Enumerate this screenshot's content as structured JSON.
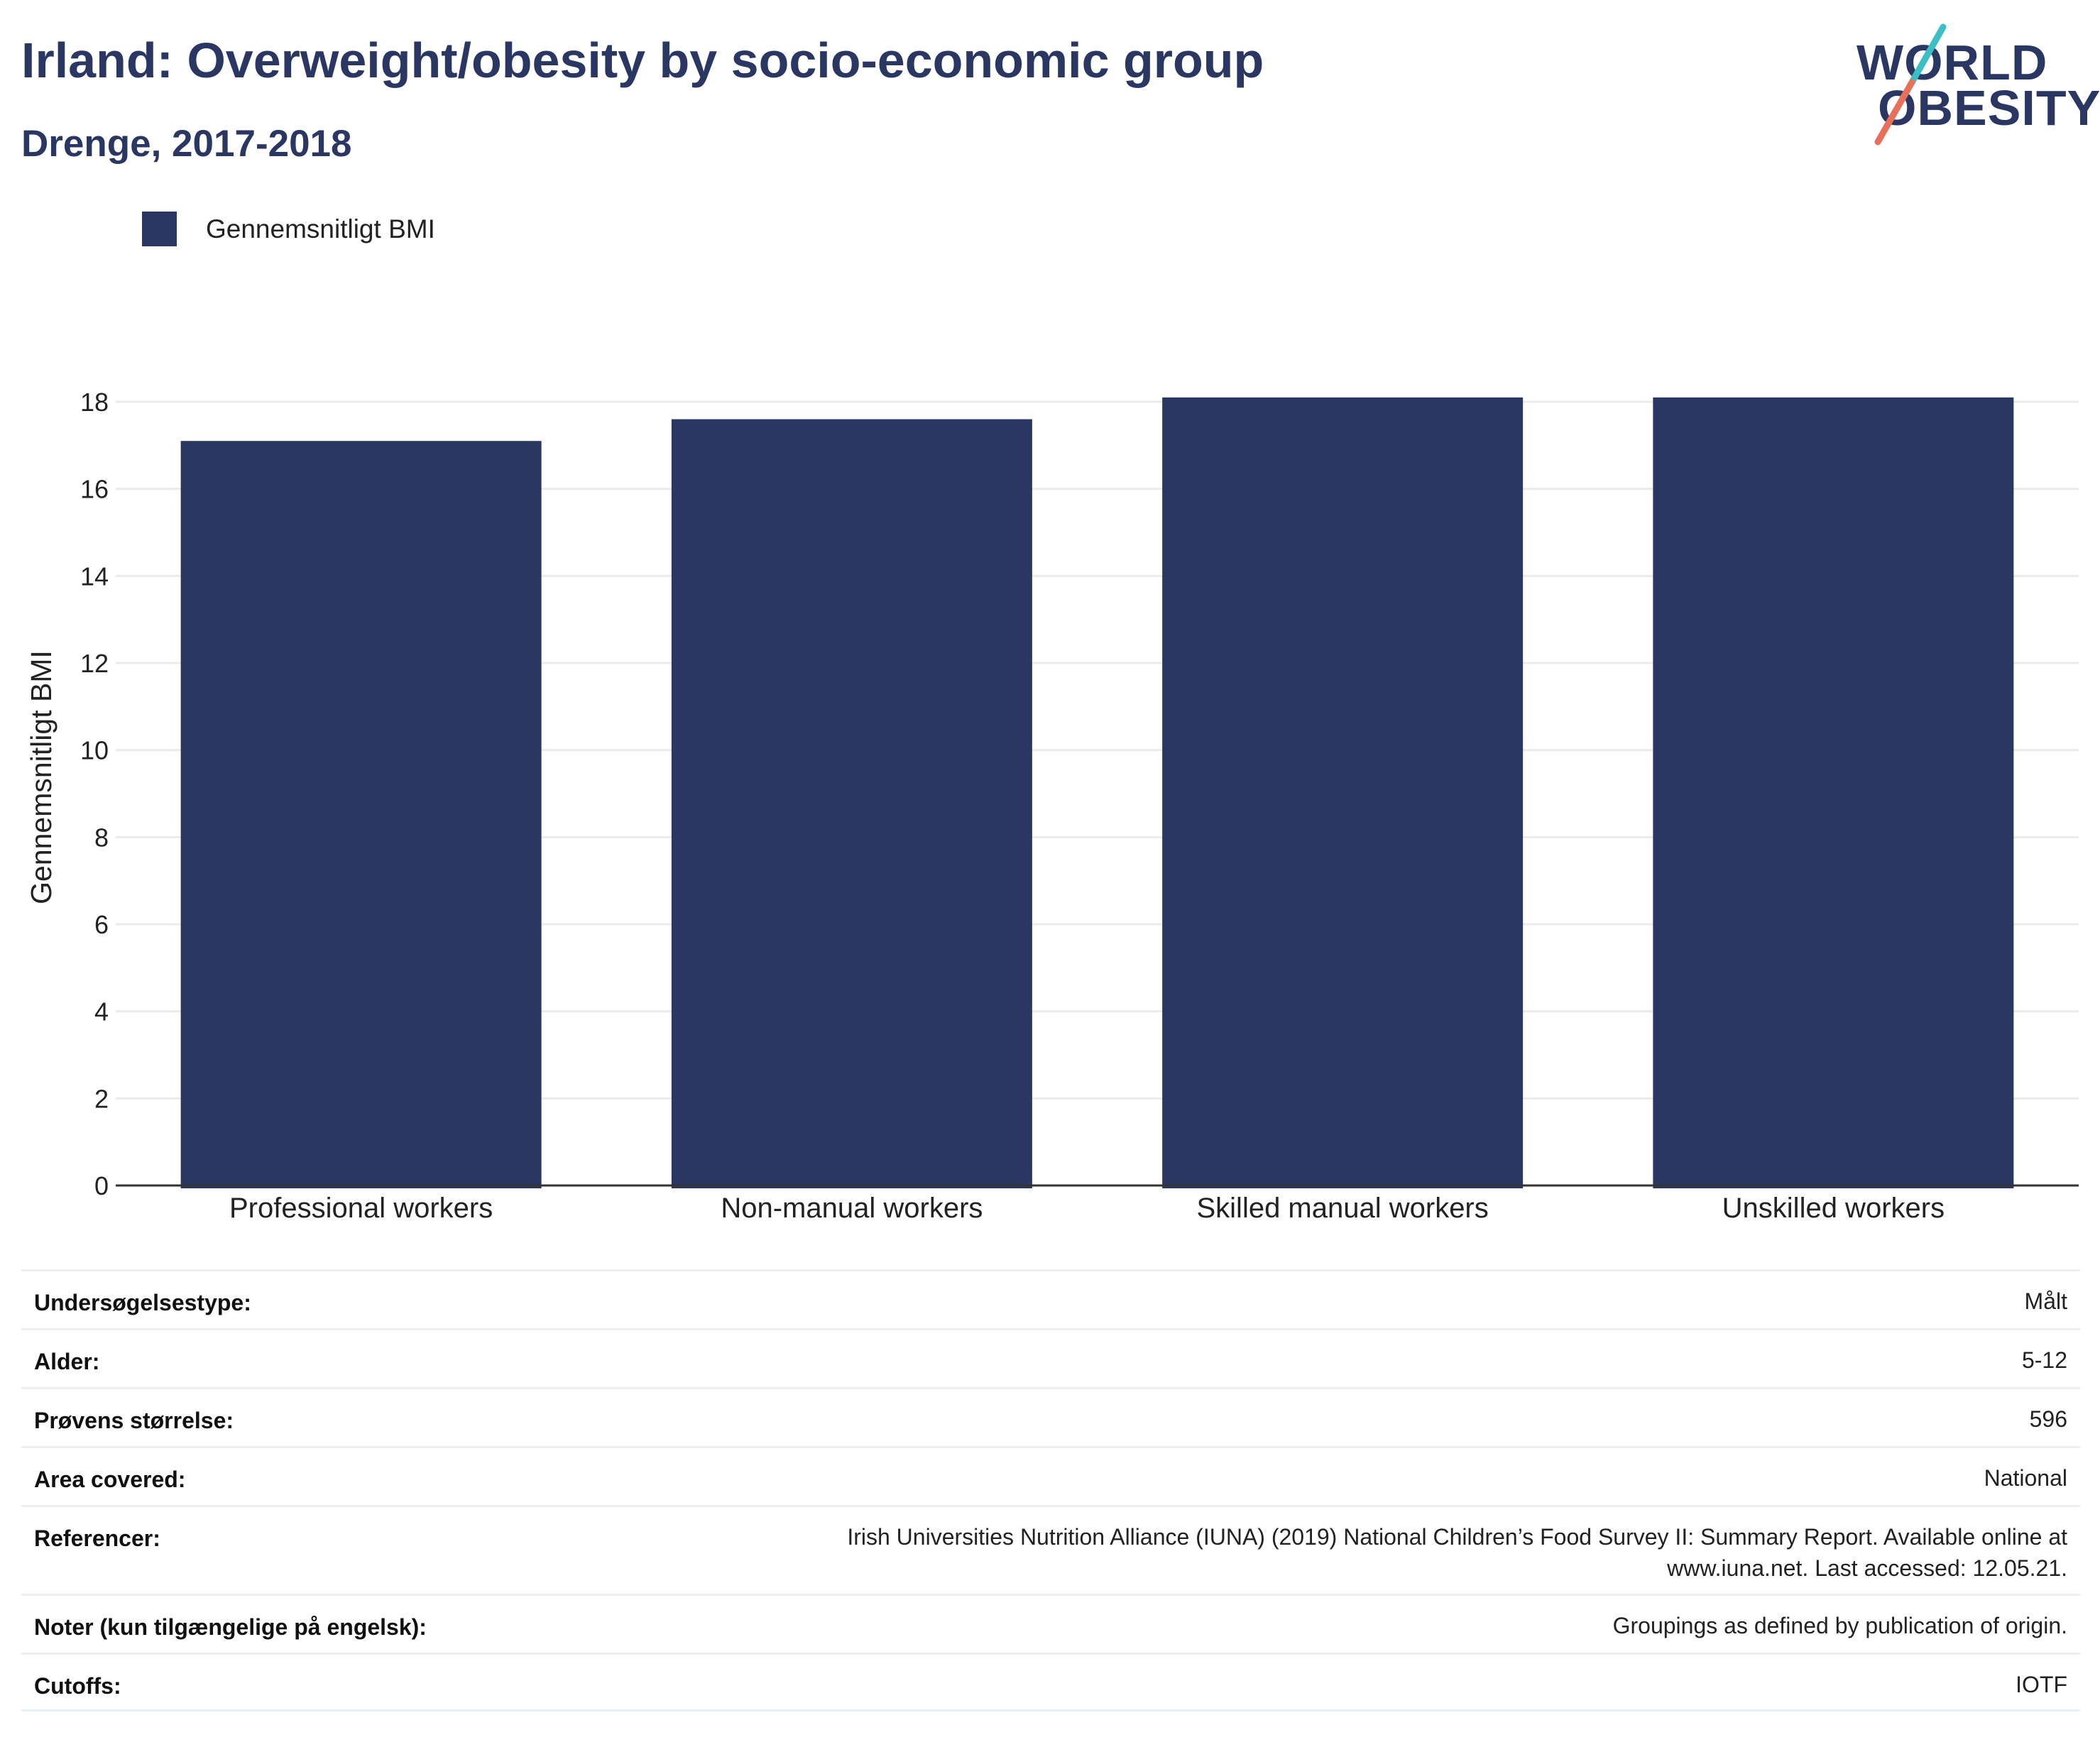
{
  "header": {
    "title": "Irland: Overweight/obesity by socio-economic group",
    "subtitle": "Drenge, 2017-2018"
  },
  "logo": {
    "line1": "WORLD",
    "line2": "OBESITY",
    "colors": {
      "text": "#2b3763",
      "slash_top": "#3bbfc4",
      "slash_bottom": "#e8705a"
    }
  },
  "legend": {
    "label": "Gennemsnitligt BMI",
    "color": "#2b3763",
    "placement": "top-left"
  },
  "chart_data": {
    "type": "bar",
    "categories": [
      "Professional workers",
      "Non-manual workers",
      "Skilled manual workers",
      "Unskilled workers"
    ],
    "series": [
      {
        "name": "Gennemsnitligt BMI",
        "values": [
          17.1,
          17.6,
          18.1,
          18.1
        ],
        "color": "#2b3763"
      }
    ],
    "ylabel": "Gennemsnitligt BMI",
    "xlabel": "",
    "ylim": [
      0,
      18.2
    ],
    "yticks": [
      0,
      2,
      4,
      6,
      8,
      10,
      12,
      14,
      16,
      18
    ],
    "grid": true
  },
  "info": [
    {
      "label": "Undersøgelsestype:",
      "value": "Målt"
    },
    {
      "label": "Alder:",
      "value": "5-12"
    },
    {
      "label": "Prøvens størrelse:",
      "value": "596"
    },
    {
      "label": "Area covered:",
      "value": "National"
    },
    {
      "label": "Referencer:",
      "value": "Irish Universities Nutrition Alliance (IUNA) (2019) National Children’s Food Survey II: Summary Report. Available online at",
      "value2": "www.iuna.net. Last accessed: 12.05.21."
    },
    {
      "label": "Noter (kun tilgængelige på engelsk):",
      "value": "Groupings as defined by publication of origin."
    },
    {
      "label": "Cutoffs:",
      "value": "IOTF"
    }
  ]
}
